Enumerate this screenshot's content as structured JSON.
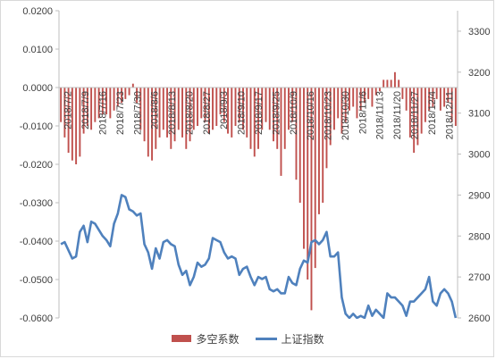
{
  "chart_data": {
    "type": "bar+line",
    "title": "",
    "x_tick_labels": [
      "2018/7/2",
      "2018/7/9",
      "2018/7/16",
      "2018/7/23",
      "2018/7/30",
      "2018/8/6",
      "2018/8/13",
      "2018/8/20",
      "2018/8/27",
      "2018/9/3",
      "2018/9/10",
      "2018/9/17",
      "2018/9/25",
      "2018/10/9",
      "2018/10/16",
      "2018/10/23",
      "2018/10/30",
      "2018/11/6",
      "2018/11/13",
      "2018/11/20",
      "2018/11/27",
      "2018/12/4",
      "2018/12/11"
    ],
    "left_axis": {
      "min": -0.06,
      "max": 0.02,
      "ticks": [
        "0.0200",
        "0.0100",
        "0.0000",
        "-0.0100",
        "-0.0200",
        "-0.0300",
        "-0.0400",
        "-0.0500",
        "-0.0600"
      ]
    },
    "right_axis": {
      "min": 2600,
      "max": 3350,
      "ticks": [
        "3300",
        "3200",
        "3100",
        "3000",
        "2900",
        "2800",
        "2700",
        "2600"
      ]
    },
    "series": [
      {
        "name": "多空系数",
        "type": "bar",
        "color": "#c0504d",
        "axis": "left",
        "values": [
          -0.009,
          -0.013,
          -0.017,
          -0.019,
          -0.02,
          -0.018,
          -0.012,
          -0.01,
          -0.011,
          -0.009,
          -0.008,
          -0.007,
          -0.007,
          -0.008,
          -0.006,
          -0.005,
          -0.004,
          -0.003,
          -0.002,
          0.001,
          -0.004,
          -0.011,
          -0.014,
          -0.018,
          -0.019,
          -0.016,
          -0.013,
          -0.011,
          -0.013,
          -0.016,
          -0.014,
          -0.011,
          -0.013,
          -0.016,
          -0.014,
          -0.011,
          -0.01,
          -0.008,
          -0.009,
          -0.012,
          -0.011,
          -0.01,
          -0.007,
          -0.009,
          -0.012,
          -0.013,
          -0.01,
          -0.009,
          -0.011,
          -0.013,
          -0.016,
          -0.018,
          -0.016,
          -0.011,
          -0.009,
          -0.011,
          -0.014,
          -0.016,
          -0.023,
          -0.016,
          -0.011,
          -0.009,
          -0.024,
          -0.03,
          -0.042,
          -0.05,
          -0.058,
          -0.047,
          -0.033,
          -0.03,
          -0.021,
          -0.015,
          -0.011,
          -0.008,
          -0.012,
          -0.009,
          -0.006,
          -0.005,
          -0.008,
          -0.006,
          -0.004,
          -0.003,
          -0.005,
          -0.002,
          -0.001,
          0.002,
          0.002,
          0.002,
          0.004,
          0.002,
          -0.003,
          -0.006,
          -0.013,
          -0.017,
          -0.015,
          -0.012,
          -0.009,
          -0.006,
          -0.005,
          -0.003,
          -0.006,
          -0.005,
          -0.004,
          -0.009,
          -0.01
        ]
      },
      {
        "name": "上证指数",
        "type": "line",
        "color": "#4f81bd",
        "axis": "right",
        "values": [
          2780,
          2785,
          2765,
          2745,
          2750,
          2810,
          2825,
          2785,
          2835,
          2830,
          2815,
          2800,
          2790,
          2775,
          2830,
          2855,
          2900,
          2895,
          2865,
          2860,
          2850,
          2855,
          2780,
          2760,
          2720,
          2770,
          2745,
          2785,
          2790,
          2780,
          2775,
          2730,
          2705,
          2715,
          2680,
          2700,
          2735,
          2725,
          2730,
          2745,
          2795,
          2790,
          2785,
          2760,
          2745,
          2750,
          2745,
          2705,
          2720,
          2725,
          2700,
          2680,
          2700,
          2695,
          2700,
          2670,
          2665,
          2670,
          2660,
          2660,
          2700,
          2685,
          2680,
          2720,
          2740,
          2735,
          2785,
          2790,
          2780,
          2790,
          2810,
          2750,
          2750,
          2760,
          2650,
          2610,
          2600,
          2610,
          2600,
          2605,
          2600,
          2630,
          2605,
          2620,
          2610,
          2600,
          2660,
          2650,
          2650,
          2640,
          2630,
          2605,
          2640,
          2640,
          2650,
          2660,
          2670,
          2700,
          2640,
          2630,
          2660,
          2670,
          2660,
          2640,
          2600
        ]
      }
    ]
  },
  "legend": {
    "bar_label": "多空系数",
    "line_label": "上证指数"
  }
}
